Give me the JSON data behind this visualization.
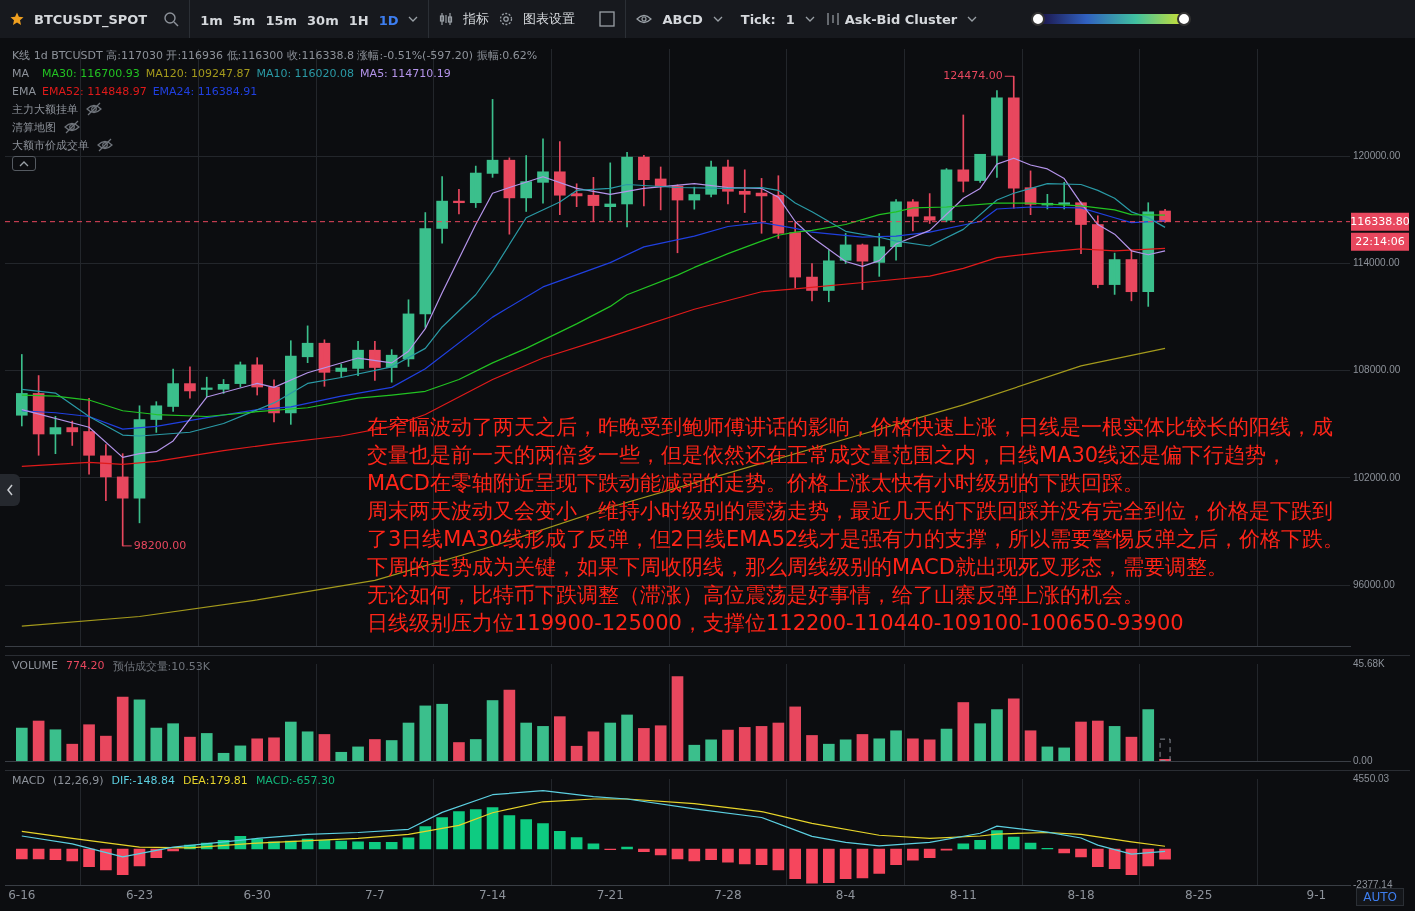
{
  "chart_data": [
    {
      "type": "other",
      "annotations": [
        "BTCUSDT_SPOT",
        "1m",
        "5m",
        "15m",
        "30m",
        "1H",
        "1D",
        "指标",
        "图表设置",
        "ABCD",
        "Tick:",
        "1",
        "Ask-Bid Cluster"
      ]
    },
    {
      "type": "candlestick",
      "subtitle": "K线  1d BTCUSDT 高:117030  开:116936  低:116300  收:116338.8  涨幅:-0.51%(-597.20)  振幅:0.62%",
      "x": [
        "--06-16",
        "--06-17",
        "--06-18",
        "--06-19",
        "--06-20",
        "--06-21",
        "--06-22",
        "--06-23",
        "--06-24",
        "--06-25",
        "--06-26",
        "--06-27",
        "--06-28",
        "--06-29",
        "--06-30",
        "--07-01",
        "--07-02",
        "--07-03",
        "--07-04",
        "--07-05",
        "--07-06",
        "--07-07",
        "--07-08",
        "--07-09",
        "--07-10",
        "--07-11",
        "--07-12",
        "--07-13",
        "--07-14",
        "--07-15",
        "--07-16",
        "--07-17",
        "--07-18",
        "--07-19",
        "--07-20",
        "--07-21",
        "--07-22",
        "--07-23",
        "--07-24",
        "--07-25",
        "--07-26",
        "--07-27",
        "--07-28",
        "--07-29",
        "--07-30",
        "--07-31",
        "--08-01",
        "--08-02",
        "--08-03",
        "--08-04",
        "--08-05",
        "--08-06",
        "--08-07",
        "--08-08",
        "--08-09",
        "--08-10",
        "--08-11",
        "--08-12",
        "--08-13",
        "--08-14",
        "--08-15",
        "--08-16",
        "--08-17",
        "--08-18",
        "--08-19",
        "--08-20",
        "--08-21",
        "--08-22",
        "--08-23"
      ],
      "ohlc": [
        [
          105510,
          108910,
          104910,
          106730
        ],
        [
          106730,
          107730,
          103270,
          104460
        ],
        [
          104460,
          105450,
          103360,
          104820
        ],
        [
          104820,
          105180,
          103820,
          104580
        ],
        [
          104600,
          106460,
          102220,
          103270
        ],
        [
          103240,
          103870,
          100730,
          102060
        ],
        [
          102060,
          103360,
          98200,
          100870
        ],
        [
          100870,
          106040,
          99490,
          105270
        ],
        [
          105270,
          106270,
          104550,
          106040
        ],
        [
          106000,
          108090,
          105730,
          107280
        ],
        [
          107280,
          108220,
          106460,
          106870
        ],
        [
          106950,
          107640,
          106540,
          107040
        ],
        [
          106960,
          107510,
          106730,
          107240
        ],
        [
          107280,
          108490,
          107090,
          108330
        ],
        [
          108330,
          108730,
          106640,
          107090
        ],
        [
          107090,
          107490,
          105130,
          105640
        ],
        [
          105640,
          109680,
          105000,
          108820
        ],
        [
          108780,
          110510,
          108450,
          109540
        ],
        [
          109540,
          109730,
          107130,
          107910
        ],
        [
          107960,
          108370,
          107640,
          108150
        ],
        [
          108130,
          109640,
          107730,
          109150
        ],
        [
          109150,
          109640,
          107460,
          108180
        ],
        [
          108180,
          109180,
          107360,
          108870
        ],
        [
          108660,
          111970,
          108240,
          111180
        ],
        [
          111180,
          116850,
          110420,
          115960
        ],
        [
          115960,
          118860,
          115130,
          117490
        ],
        [
          117490,
          118150,
          116780,
          117400
        ],
        [
          117400,
          119450,
          117130,
          119060
        ],
        [
          119040,
          123180,
          118820,
          119780
        ],
        [
          119780,
          119910,
          115640,
          117670
        ],
        [
          117670,
          120040,
          116910,
          118580
        ],
        [
          118540,
          120970,
          117370,
          119130
        ],
        [
          119130,
          120820,
          116730,
          117820
        ],
        [
          117910,
          118460,
          117180,
          117780
        ],
        [
          117820,
          118820,
          116360,
          117240
        ],
        [
          117180,
          119630,
          116400,
          117330
        ],
        [
          117330,
          120220,
          116040,
          119950
        ],
        [
          119950,
          120050,
          117220,
          118690
        ],
        [
          118730,
          119400,
          117000,
          118330
        ],
        [
          118330,
          118400,
          114600,
          117550
        ],
        [
          117550,
          118270,
          117040,
          117860
        ],
        [
          117870,
          119730,
          117730,
          119400
        ],
        [
          119400,
          119780,
          117330,
          118040
        ],
        [
          118040,
          119240,
          116850,
          117870
        ],
        [
          117940,
          118760,
          115690,
          117780
        ],
        [
          117820,
          118910,
          115400,
          115690
        ],
        [
          115730,
          116290,
          112640,
          113240
        ],
        [
          113240,
          114000,
          111910,
          112490
        ],
        [
          112490,
          114730,
          111860,
          114150
        ],
        [
          114180,
          115680,
          114000,
          115040
        ],
        [
          115040,
          115090,
          112540,
          114130
        ],
        [
          114060,
          115680,
          113280,
          114940
        ],
        [
          114940,
          117580,
          114180,
          117450
        ],
        [
          117450,
          117580,
          115820,
          116640
        ],
        [
          116620,
          117910,
          116240,
          116420
        ],
        [
          116420,
          119310,
          116330,
          119240
        ],
        [
          119240,
          122310,
          118000,
          118600
        ],
        [
          118640,
          120110,
          118540,
          120110
        ],
        [
          120050,
          123670,
          118820,
          123270
        ],
        [
          123270,
          124474,
          117090,
          118220
        ],
        [
          118240,
          119180,
          116730,
          117310
        ],
        [
          117270,
          117870,
          117050,
          117370
        ],
        [
          117310,
          118540,
          117050,
          117400
        ],
        [
          117400,
          117450,
          114550,
          116180
        ],
        [
          116180,
          116670,
          112640,
          112820
        ],
        [
          112820,
          114580,
          112270,
          114220
        ],
        [
          114220,
          114760,
          111910,
          112420
        ],
        [
          112420,
          117400,
          111600,
          116890
        ],
        [
          116936,
          117030,
          116300,
          116338.8
        ]
      ],
      "colors": [
        "#3bbf8c",
        "#e8475e",
        "#3bbf8c",
        "#e8475e",
        "#e8475e",
        "#e8475e",
        "#e8475e",
        "#3bbf8c",
        "#3bbf8c",
        "#3bbf8c",
        "#e8475e",
        "#3bbf8c",
        "#3bbf8c",
        "#3bbf8c",
        "#e8475e",
        "#e8475e",
        "#3bbf8c",
        "#3bbf8c",
        "#e8475e",
        "#3bbf8c",
        "#3bbf8c",
        "#e8475e",
        "#3bbf8c",
        "#3bbf8c",
        "#3bbf8c",
        "#3bbf8c",
        "#e8475e",
        "#3bbf8c",
        "#3bbf8c",
        "#e8475e",
        "#3bbf8c",
        "#3bbf8c",
        "#e8475e",
        "#e8475e",
        "#e8475e",
        "#3bbf8c",
        "#3bbf8c",
        "#e8475e",
        "#e8475e",
        "#e8475e",
        "#3bbf8c",
        "#3bbf8c",
        "#e8475e",
        "#e8475e",
        "#e8475e",
        "#e8475e",
        "#e8475e",
        "#e8475e",
        "#3bbf8c",
        "#3bbf8c",
        "#e8475e",
        "#3bbf8c",
        "#3bbf8c",
        "#e8475e",
        "#e8475e",
        "#3bbf8c",
        "#e8475e",
        "#3bbf8c",
        "#3bbf8c",
        "#e8475e",
        "#e8475e",
        "#3bbf8c",
        "#3bbf8c",
        "#e8475e",
        "#e8475e",
        "#3bbf8c",
        "#e8475e",
        "#3bbf8c",
        "#e8475e"
      ],
      "series": [
        {
          "type": "line",
          "name": "MA30: 116700.93",
          "color": "#22c322",
          "x": [
            "--06-16",
            "--06-18",
            "--06-20",
            "--06-22",
            "--06-24",
            "--06-27",
            "--06-30",
            "--07-03",
            "--07-06",
            "--07-08",
            "--07-10",
            "--07-12",
            "--07-14",
            "--07-16",
            "--07-19",
            "--07-21",
            "--07-22",
            "--07-25",
            "--07-26",
            "--07-28",
            "--07-30",
            "--07-31",
            "--08-01",
            "--08-02",
            "--08-04",
            "--08-06",
            "--08-07",
            "--08-08",
            "--08-10",
            "--08-13",
            "--08-15",
            "--08-18",
            "--08-20",
            "--08-21",
            "--08-23"
          ],
          "values": [
            106640,
            106580,
            106360,
            105760,
            105550,
            105440,
            105710,
            105930,
            106470,
            106640,
            106850,
            107510,
            108440,
            109250,
            110620,
            111600,
            112250,
            113350,
            113780,
            114550,
            115250,
            115580,
            115750,
            115850,
            116180,
            116730,
            116890,
            117110,
            117160,
            117380,
            117380,
            117220,
            117000,
            116730,
            116700.93
          ]
        },
        {
          "type": "line",
          "name": "MA120: 109247.87",
          "color": "#a49a1c",
          "x": [
            "--06-16",
            "--06-23",
            "--06-30",
            "--07-07",
            "--07-14",
            "--07-21",
            "--07-28",
            "--08-04",
            "--08-11",
            "--08-18",
            "--08-23"
          ],
          "values": [
            93710,
            94250,
            95180,
            96270,
            98180,
            100360,
            102270,
            104180,
            106090,
            108270,
            109247.87
          ]
        },
        {
          "type": "line",
          "name": "MA10: 116020.08",
          "color": "#2a9aa6",
          "x": [
            "--06-16",
            "--06-18",
            "--06-20",
            "--06-22",
            "--06-23",
            "--06-26",
            "--06-28",
            "--07-01",
            "--07-03",
            "--07-05",
            "--07-08",
            "--07-10",
            "--07-11",
            "--07-13",
            "--07-14",
            "--07-16",
            "--07-18",
            "--07-19",
            "--07-21",
            "--07-22",
            "--07-25",
            "--07-28",
            "--07-30",
            "--07-31",
            "--08-01",
            "--08-02",
            "--08-04",
            "--08-06",
            "--08-07",
            "--08-09",
            "--08-11",
            "--08-13",
            "--08-14",
            "--08-16",
            "--08-18",
            "--08-19",
            "--08-20",
            "--08-21",
            "--08-22",
            "--08-23"
          ],
          "values": [
            106960,
            106750,
            105440,
            104400,
            104350,
            104560,
            105050,
            106200,
            107290,
            107620,
            108220,
            109250,
            110450,
            112250,
            113560,
            116560,
            117440,
            118090,
            118200,
            118420,
            118250,
            118200,
            118250,
            118090,
            117380,
            116890,
            115800,
            115470,
            115250,
            114980,
            115910,
            117550,
            117930,
            118470,
            118420,
            118090,
            117650,
            116890,
            116560,
            116020.08
          ]
        },
        {
          "type": "line",
          "name": "MA5: 114710.19",
          "color": "#b494ea",
          "x": [
            "--06-16",
            "--06-20",
            "--06-22",
            "--06-23",
            "--06-24",
            "--06-25",
            "--06-27",
            "--06-30",
            "--07-01",
            "--07-03",
            "--07-06",
            "--07-08",
            "--07-09",
            "--07-10",
            "--07-11",
            "--07-13",
            "--07-14",
            "--07-15",
            "--07-17",
            "--07-19",
            "--07-21",
            "--07-23",
            "--07-26",
            "--07-28",
            "--07-30",
            "--07-31",
            "--08-01",
            "--08-02",
            "--08-04",
            "--08-05",
            "--08-06",
            "--08-07",
            "--08-09",
            "--08-11",
            "--08-12",
            "--08-13",
            "--08-14",
            "--08-15",
            "--08-16",
            "--08-17",
            "--08-18",
            "--08-19",
            "--08-20",
            "--08-21",
            "--08-22",
            "--08-23"
          ],
          "values": [
            105820,
            104840,
            103150,
            103360,
            103470,
            104070,
            106530,
            107290,
            107070,
            107890,
            108710,
            108440,
            109090,
            110350,
            112360,
            116180,
            117930,
            118250,
            118850,
            118200,
            117870,
            118200,
            118470,
            118250,
            118200,
            117710,
            116350,
            115470,
            114110,
            113840,
            114160,
            115090,
            115850,
            117650,
            118200,
            119560,
            119890,
            119510,
            119290,
            118750,
            117380,
            116180,
            115640,
            114710,
            114490,
            114710.19
          ]
        },
        {
          "type": "line",
          "name": "EMA52: 114848.97",
          "color": "#e01a1a",
          "x": [
            "--06-16",
            "--06-20",
            "--06-22",
            "--06-24",
            "--06-28",
            "--07-01",
            "--07-05",
            "--07-08",
            "--07-10",
            "--07-14",
            "--07-17",
            "--07-21",
            "--07-26",
            "--07-30",
            "--08-01",
            "--08-06",
            "--08-09",
            "--08-11",
            "--08-13",
            "--08-16",
            "--08-18",
            "--08-20",
            "--08-23"
          ],
          "values": [
            102650,
            102870,
            102760,
            102930,
            103530,
            103910,
            104350,
            104890,
            105550,
            107510,
            108710,
            109910,
            111440,
            112420,
            112580,
            113020,
            113290,
            113730,
            114330,
            114650,
            114820,
            114710,
            114848.97
          ]
        },
        {
          "type": "line",
          "name": "EMA24: 116384.91",
          "color": "#2040e0",
          "x": [
            "--06-16",
            "--06-18",
            "--06-20",
            "--06-22",
            "--06-24",
            "--06-27",
            "--06-30",
            "--07-02",
            "--07-05",
            "--07-08",
            "--07-10",
            "--07-14",
            "--07-17",
            "--07-21",
            "--07-23",
            "--07-26",
            "--07-28",
            "--07-30",
            "--08-01",
            "--08-02",
            "--08-05",
            "--08-07",
            "--08-09",
            "--08-12",
            "--08-13",
            "--08-15",
            "--08-18",
            "--08-20",
            "--08-21",
            "--08-23"
          ],
          "values": [
            105760,
            105650,
            105440,
            104730,
            104890,
            105380,
            105820,
            105980,
            106580,
            107070,
            108110,
            111000,
            112690,
            114050,
            114930,
            115530,
            116070,
            116290,
            115960,
            115750,
            115470,
            115530,
            115750,
            116350,
            117050,
            117160,
            117110,
            116560,
            116290,
            116384.91
          ]
        }
      ],
      "xlim": [
        "--06-15",
        "--09-03"
      ],
      "xticks": [
        {
          "value": "--06-16",
          "label": null
        },
        {
          "value": "--06-23",
          "label": null
        },
        {
          "value": "--06-30",
          "label": null
        },
        {
          "value": "--07-07",
          "label": null
        },
        {
          "value": "--07-14",
          "label": null
        },
        {
          "value": "--07-21",
          "label": null
        },
        {
          "value": "--07-28",
          "label": null
        },
        {
          "value": "--08-04",
          "label": null
        },
        {
          "value": "--08-11",
          "label": null
        },
        {
          "value": "--08-18",
          "label": null
        },
        {
          "value": "--08-25",
          "label": null
        },
        {
          "value": "--09-01",
          "label": null
        }
      ],
      "ylim": [
        92600,
        126000
      ],
      "yticks": [
        {
          "value": 96000,
          "label": "96000.00"
        },
        {
          "value": 102000,
          "label": "102000.00"
        },
        {
          "value": 108000,
          "label": "108000.00"
        },
        {
          "value": 114000,
          "label": "114000.00"
        },
        {
          "value": 120000,
          "label": "120000.00"
        }
      ],
      "tick_labels": "y",
      "grid": true,
      "legend": "top left",
      "ref_lines": [
        {
          "axis": "y",
          "value": 116338.8,
          "label": "116338.80",
          "color": "#e8475e",
          "line_style": "dashed"
        }
      ],
      "annotations": [
        "MA",
        "EMA",
        "主力大额挂单",
        "清算地图",
        "大额市价成交单",
        "在窄幅波动了两天之后，昨晚受到鲍师傅讲话的影响，价格快速上涨，日线是一根实体比较长的阳线，成交量也是前一天的两倍多一些，但是依然还在正常成交量范围之内，日线MA30线还是偏下行趋势，MACD在零轴附近呈现下跌动能减弱的走势。价格上涨太快有小时级别的下跌回踩。",
        "周末两天波动又会变小，维持小时级别的震荡走势，最近几天的下跌回踩并没有完全到位，价格是下跌到了3日线MA30线形成了反弹，但2日线EMA52线才是强有力的支撑，所以需要警惕反弹之后，价格下跌。",
        "下周的走势成为关键，如果下周收阴线，那么周线级别的MACD就出现死叉形态，需要调整。",
        "无论如何，比特币下跌调整（滞涨）高位震荡是好事情，给了山寨反弹上涨的机会。",
        "日线级别压力位119900-125000，支撑位112200-110440-109100-100650-93900",
        "22:14:06",
        {
          "text": "98200.00",
          "x": "--06-22",
          "y": 98200
        },
        {
          "text": "124474.00",
          "x": "--08-14",
          "y": 124474
        }
      ]
    },
    {
      "type": "bar",
      "title": "VOLUME",
      "annotations": [
        "774.20",
        "预估成交量:10.53K"
      ],
      "x": [
        "--06-16",
        "--06-17",
        "--06-18",
        "--06-19",
        "--06-20",
        "--06-21",
        "--06-22",
        "--06-23",
        "--06-24",
        "--06-25",
        "--06-26",
        "--06-27",
        "--06-28",
        "--06-29",
        "--06-30",
        "--07-01",
        "--07-02",
        "--07-03",
        "--07-04",
        "--07-05",
        "--07-06",
        "--07-07",
        "--07-08",
        "--07-09",
        "--07-10",
        "--07-11",
        "--07-12",
        "--07-13",
        "--07-14",
        "--07-15",
        "--07-16",
        "--07-17",
        "--07-18",
        "--07-19",
        "--07-20",
        "--07-21",
        "--07-22",
        "--07-23",
        "--07-24",
        "--07-25",
        "--07-26",
        "--07-27",
        "--07-28",
        "--07-29",
        "--07-30",
        "--07-31",
        "--08-01",
        "--08-02",
        "--08-03",
        "--08-04",
        "--08-05",
        "--08-06",
        "--08-07",
        "--08-08",
        "--08-09",
        "--08-10",
        "--08-11",
        "--08-12",
        "--08-13",
        "--08-14",
        "--08-15",
        "--08-16",
        "--08-17",
        "--08-18",
        "--08-19",
        "--08-20",
        "--08-21",
        "--08-22",
        "--08-23"
      ],
      "series": [
        {
          "type": "bar",
          "values": [
            15510,
            18830,
            14720,
            7920,
            17090,
            11710,
            30070,
            28800,
            15510,
            17570,
            11230,
            12980,
            3640,
            7120,
            10450,
            10920,
            18360,
            13760,
            12500,
            4110,
            6640,
            10130,
            9650,
            17890,
            25950,
            26740,
            8700,
            10130,
            28480,
            33390,
            17890,
            16300,
            20890,
            6960,
            13760,
            17890,
            21680,
            15350,
            16610,
            39720,
            7440,
            9970,
            14560,
            15830,
            16300,
            17890,
            25480,
            12030,
            7920,
            9970,
            12500,
            10450,
            14240,
            10450,
            9970,
            15040,
            27540,
            17570,
            24210,
            29280,
            14240,
            6640,
            6170,
            18360,
            18830,
            16300,
            11230,
            24210,
            774.2
          ],
          "colors": [
            "#3bbf8c",
            "#e8475e",
            "#3bbf8c",
            "#e8475e",
            "#e8475e",
            "#e8475e",
            "#e8475e",
            "#3bbf8c",
            "#3bbf8c",
            "#3bbf8c",
            "#e8475e",
            "#3bbf8c",
            "#3bbf8c",
            "#3bbf8c",
            "#e8475e",
            "#e8475e",
            "#3bbf8c",
            "#3bbf8c",
            "#e8475e",
            "#3bbf8c",
            "#3bbf8c",
            "#e8475e",
            "#3bbf8c",
            "#3bbf8c",
            "#3bbf8c",
            "#3bbf8c",
            "#e8475e",
            "#3bbf8c",
            "#3bbf8c",
            "#e8475e",
            "#3bbf8c",
            "#3bbf8c",
            "#e8475e",
            "#e8475e",
            "#e8475e",
            "#3bbf8c",
            "#3bbf8c",
            "#e8475e",
            "#e8475e",
            "#e8475e",
            "#3bbf8c",
            "#3bbf8c",
            "#e8475e",
            "#e8475e",
            "#e8475e",
            "#e8475e",
            "#e8475e",
            "#e8475e",
            "#3bbf8c",
            "#3bbf8c",
            "#e8475e",
            "#3bbf8c",
            "#3bbf8c",
            "#e8475e",
            "#e8475e",
            "#3bbf8c",
            "#e8475e",
            "#3bbf8c",
            "#3bbf8c",
            "#e8475e",
            "#e8475e",
            "#3bbf8c",
            "#3bbf8c",
            "#e8475e",
            "#e8475e",
            "#3bbf8c",
            "#e8475e",
            "#3bbf8c",
            "#e8475e"
          ]
        },
        {
          "type": "bar",
          "color": "#8a8f96",
          "line_style": "dashed",
          "x": [
            "--08-23"
          ],
          "values": [
            10530
          ]
        }
      ],
      "xlim": [
        "--06-15",
        "--09-03"
      ],
      "xticks": [
        {
          "value": "--06-16",
          "label": null
        },
        {
          "value": "--06-23",
          "label": null
        },
        {
          "value": "--06-30",
          "label": null
        },
        {
          "value": "--07-07",
          "label": null
        },
        {
          "value": "--07-14",
          "label": null
        },
        {
          "value": "--07-21",
          "label": null
        },
        {
          "value": "--07-28",
          "label": null
        },
        {
          "value": "--08-04",
          "label": null
        },
        {
          "value": "--08-11",
          "label": null
        },
        {
          "value": "--08-18",
          "label": null
        },
        {
          "value": "--08-25",
          "label": null
        },
        {
          "value": "--09-01",
          "label": null
        }
      ],
      "ylim": [
        0,
        45680
      ],
      "yticks": [
        {
          "value": 0,
          "label": "0.00"
        },
        {
          "value": 45680,
          "label": "45.68K"
        }
      ],
      "tick_labels": "y",
      "grid": "x"
    },
    {
      "type": "bar",
      "title": "MACD",
      "subtitle": "(12,26,9)",
      "legend": "top left",
      "annotations": [
        "AUTO"
      ],
      "x": [
        "--06-16",
        "--06-17",
        "--06-18",
        "--06-19",
        "--06-20",
        "--06-21",
        "--06-22",
        "--06-23",
        "--06-24",
        "--06-25",
        "--06-26",
        "--06-27",
        "--06-28",
        "--06-29",
        "--06-30",
        "--07-01",
        "--07-02",
        "--07-03",
        "--07-04",
        "--07-05",
        "--07-06",
        "--07-07",
        "--07-08",
        "--07-09",
        "--07-10",
        "--07-11",
        "--07-12",
        "--07-13",
        "--07-14",
        "--07-15",
        "--07-16",
        "--07-17",
        "--07-18",
        "--07-19",
        "--07-20",
        "--07-21",
        "--07-22",
        "--07-23",
        "--07-24",
        "--07-25",
        "--07-26",
        "--07-27",
        "--07-28",
        "--07-29",
        "--07-30",
        "--07-31",
        "--08-01",
        "--08-02",
        "--08-03",
        "--08-04",
        "--08-05",
        "--08-06",
        "--08-07",
        "--08-08",
        "--08-09",
        "--08-10",
        "--08-11",
        "--08-12",
        "--08-13",
        "--08-14",
        "--08-15",
        "--08-16",
        "--08-17",
        "--08-18",
        "--08-19",
        "--08-20",
        "--08-21",
        "--08-22",
        "--08-23"
      ],
      "series": [
        {
          "type": "line",
          "name": "DIF:-148.84",
          "color": "#5ccfe0",
          "x": [
            "--06-16",
            "--06-19",
            "--06-22",
            "--06-25",
            "--06-30",
            "--07-03",
            "--07-06",
            "--07-09",
            "--07-11",
            "--07-14",
            "--07-17",
            "--07-20",
            "--07-22",
            "--07-26",
            "--07-30",
            "--08-02",
            "--08-04",
            "--08-06",
            "--08-09",
            "--08-12",
            "--08-13",
            "--08-16",
            "--08-18",
            "--08-19",
            "--08-21",
            "--08-23"
          ],
          "values": [
            845,
            333,
            -512,
            128,
            690,
            947,
            1075,
            1280,
            2380,
            3530,
            3790,
            3400,
            3250,
            2610,
            2050,
            820,
            435,
            205,
            435,
            1024,
            1485,
            1100,
            717,
            256,
            -333,
            -148.84
          ]
        },
        {
          "type": "line",
          "name": "DEA:179.81",
          "color": "#e6d42a",
          "x": [
            "--06-16",
            "--06-19",
            "--06-23",
            "--06-26",
            "--06-30",
            "--07-06",
            "--07-09",
            "--07-12",
            "--07-14",
            "--07-17",
            "--07-20",
            "--07-22",
            "--07-26",
            "--07-30",
            "--08-02",
            "--08-06",
            "--08-09",
            "--08-12",
            "--08-13",
            "--08-16",
            "--08-18",
            "--08-21",
            "--08-23"
          ],
          "values": [
            1150,
            690,
            128,
            77,
            384,
            690,
            947,
            1536,
            2355,
            3070,
            3250,
            3250,
            2944,
            2432,
            1664,
            896,
            690,
            845,
            973,
            1075,
            947,
            460,
            179.81
          ]
        },
        {
          "type": "bar",
          "name": "MACD:-657.30",
          "color": "#12b57a",
          "values": [
            -640,
            -640,
            -690,
            -770,
            -1150,
            -1360,
            -1660,
            -1100,
            -560,
            -130,
            260,
            390,
            560,
            820,
            640,
            460,
            520,
            640,
            560,
            520,
            460,
            430,
            430,
            720,
            1460,
            2050,
            2440,
            2570,
            2690,
            2180,
            1920,
            1660,
            1150,
            740,
            330,
            -50,
            130,
            -180,
            -390,
            -640,
            -770,
            -690,
            -850,
            -970,
            -1020,
            -1360,
            -1920,
            -2220,
            -2180,
            -1920,
            -1870,
            -1590,
            -1020,
            -720,
            -560,
            -70,
            330,
            560,
            1200,
            770,
            390,
            50,
            -260,
            -510,
            -1150,
            -1280,
            -1660,
            -1100,
            -657.3
          ],
          "colors": [
            "#f6465d",
            "#f6465d",
            "#f6465d",
            "#f6465d",
            "#f6465d",
            "#f6465d",
            "#f6465d",
            "#f6465d",
            "#f6465d",
            "#f6465d",
            "#0ecb81",
            "#0ecb81",
            "#0ecb81",
            "#0ecb81",
            "#0ecb81",
            "#0ecb81",
            "#0ecb81",
            "#0ecb81",
            "#0ecb81",
            "#0ecb81",
            "#0ecb81",
            "#0ecb81",
            "#0ecb81",
            "#0ecb81",
            "#0ecb81",
            "#0ecb81",
            "#0ecb81",
            "#0ecb81",
            "#0ecb81",
            "#0ecb81",
            "#0ecb81",
            "#0ecb81",
            "#0ecb81",
            "#0ecb81",
            "#0ecb81",
            "#f6465d",
            "#0ecb81",
            "#f6465d",
            "#f6465d",
            "#f6465d",
            "#f6465d",
            "#f6465d",
            "#f6465d",
            "#f6465d",
            "#f6465d",
            "#f6465d",
            "#f6465d",
            "#f6465d",
            "#f6465d",
            "#f6465d",
            "#f6465d",
            "#f6465d",
            "#f6465d",
            "#f6465d",
            "#f6465d",
            "#f6465d",
            "#0ecb81",
            "#0ecb81",
            "#0ecb81",
            "#0ecb81",
            "#0ecb81",
            "#0ecb81",
            "#f6465d",
            "#f6465d",
            "#f6465d",
            "#f6465d",
            "#f6465d",
            "#f6465d",
            "#f6465d"
          ]
        }
      ],
      "xlim": [
        "--06-15",
        "--09-03"
      ],
      "xticks": [
        {
          "value": "--06-16",
          "label": "6-16"
        },
        {
          "value": "--06-23",
          "label": "6-23"
        },
        {
          "value": "--06-30",
          "label": "6-30"
        },
        {
          "value": "--07-07",
          "label": "7-7"
        },
        {
          "value": "--07-14",
          "label": "7-14"
        },
        {
          "value": "--07-21",
          "label": "7-21"
        },
        {
          "value": "--07-28",
          "label": "7-28"
        },
        {
          "value": "--08-04",
          "label": "8-4"
        },
        {
          "value": "--08-11",
          "label": "8-11"
        },
        {
          "value": "--08-18",
          "label": "8-18"
        },
        {
          "value": "--08-25",
          "label": "8-25"
        },
        {
          "value": "--09-01",
          "label": "9-1"
        }
      ],
      "ylim": [
        -2377.14,
        4550.03
      ],
      "yticks": [
        -2377.14,
        4550.03
      ],
      "grid": "x"
    }
  ]
}
